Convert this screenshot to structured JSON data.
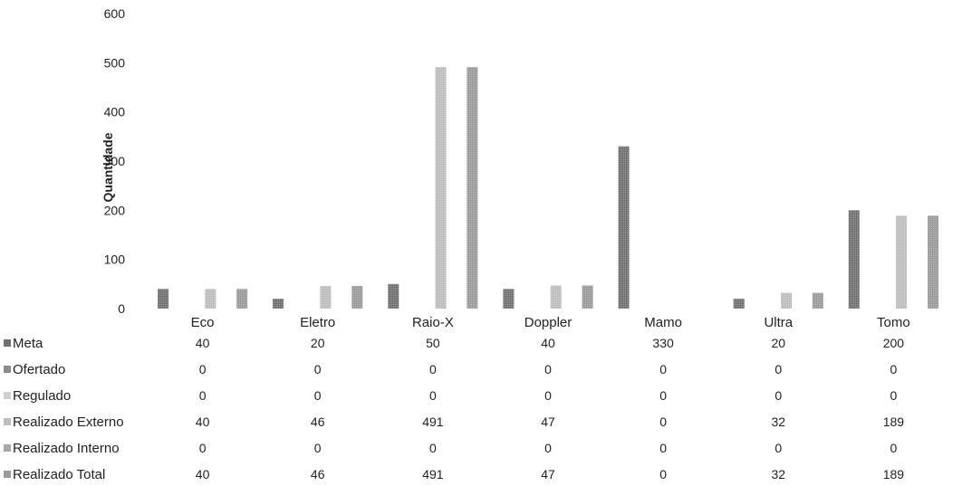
{
  "chart_data": {
    "type": "bar",
    "ylabel": "Quantidade",
    "ylim": [
      0,
      600
    ],
    "yticks": [
      0,
      100,
      200,
      300,
      400,
      500,
      600
    ],
    "grid": false,
    "legend": "data-table-left",
    "categories": [
      "Eco",
      "Eletro",
      "Raio-X",
      "Doppler",
      "Mamo",
      "Ultra",
      "Tomo"
    ],
    "series": [
      {
        "name": "Meta",
        "values": [
          40,
          20,
          50,
          40,
          330,
          20,
          200
        ],
        "color": "#707070"
      },
      {
        "name": "Ofertado",
        "values": [
          0,
          0,
          0,
          0,
          0,
          0,
          0
        ],
        "color": "#8c8c8c"
      },
      {
        "name": "Regulado",
        "values": [
          0,
          0,
          0,
          0,
          0,
          0,
          0
        ],
        "color": "#cfcfcf"
      },
      {
        "name": "Realizado Externo",
        "values": [
          40,
          46,
          491,
          47,
          0,
          32,
          189
        ],
        "color": "#bdbdbd"
      },
      {
        "name": "Realizado Interno",
        "values": [
          0,
          0,
          0,
          0,
          0,
          0,
          0
        ],
        "color": "#a8a8a8"
      },
      {
        "name": "Realizado Total",
        "values": [
          40,
          46,
          491,
          47,
          0,
          32,
          189
        ],
        "color": "#9a9a9a"
      }
    ]
  }
}
